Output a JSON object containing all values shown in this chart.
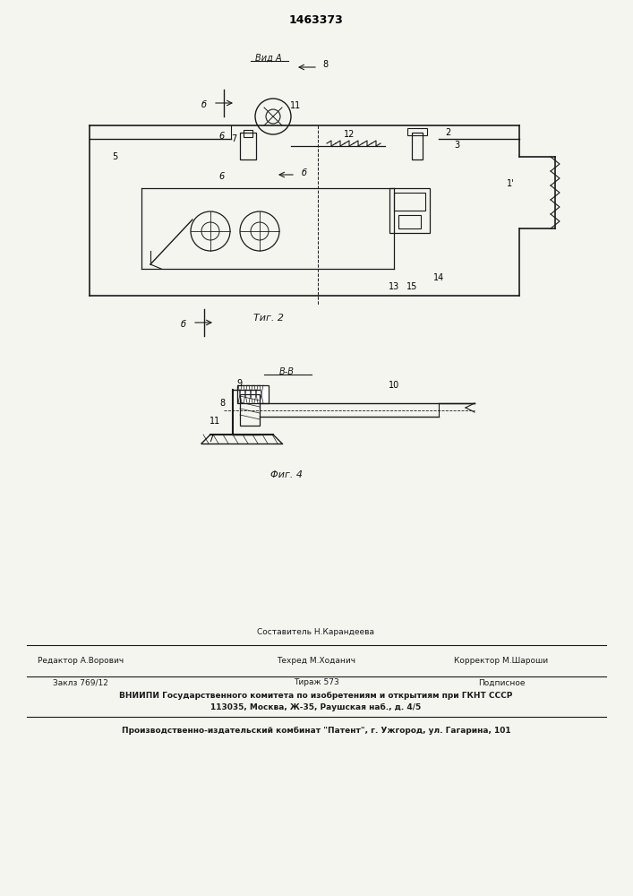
{
  "patent_number": "1463373",
  "bg_color": "#f5f5f0",
  "line_color": "#1a1a1a",
  "fig2_label": "Τиг. 2",
  "fig4_label": "Φиг. 4",
  "vid_a_label": "Вид A",
  "bb_label": "В-В",
  "footer_line1_left": "Редактор А.Ворович",
  "footer_line1_center": "Техред М.Ходанич",
  "footer_line1_right": "Корректор М.Шароши",
  "footer_line0_center": "Составитель Н.Карандеева",
  "footer_line2_left": "Заклз 769/12",
  "footer_line2_center": "Тираж 573",
  "footer_line2_right": "Подписное",
  "footer_line3": "ВНИИПИ Государственного комитета по изобретениям и открытиям при ГКНТ СССР",
  "footer_line4": "113035, Москва, Ж-35, Раушская наб., д. 4/5",
  "footer_line5": "Производственно-издательский комбинат \"Патент\", г. Ужгород, ул. Гагарина, 101"
}
